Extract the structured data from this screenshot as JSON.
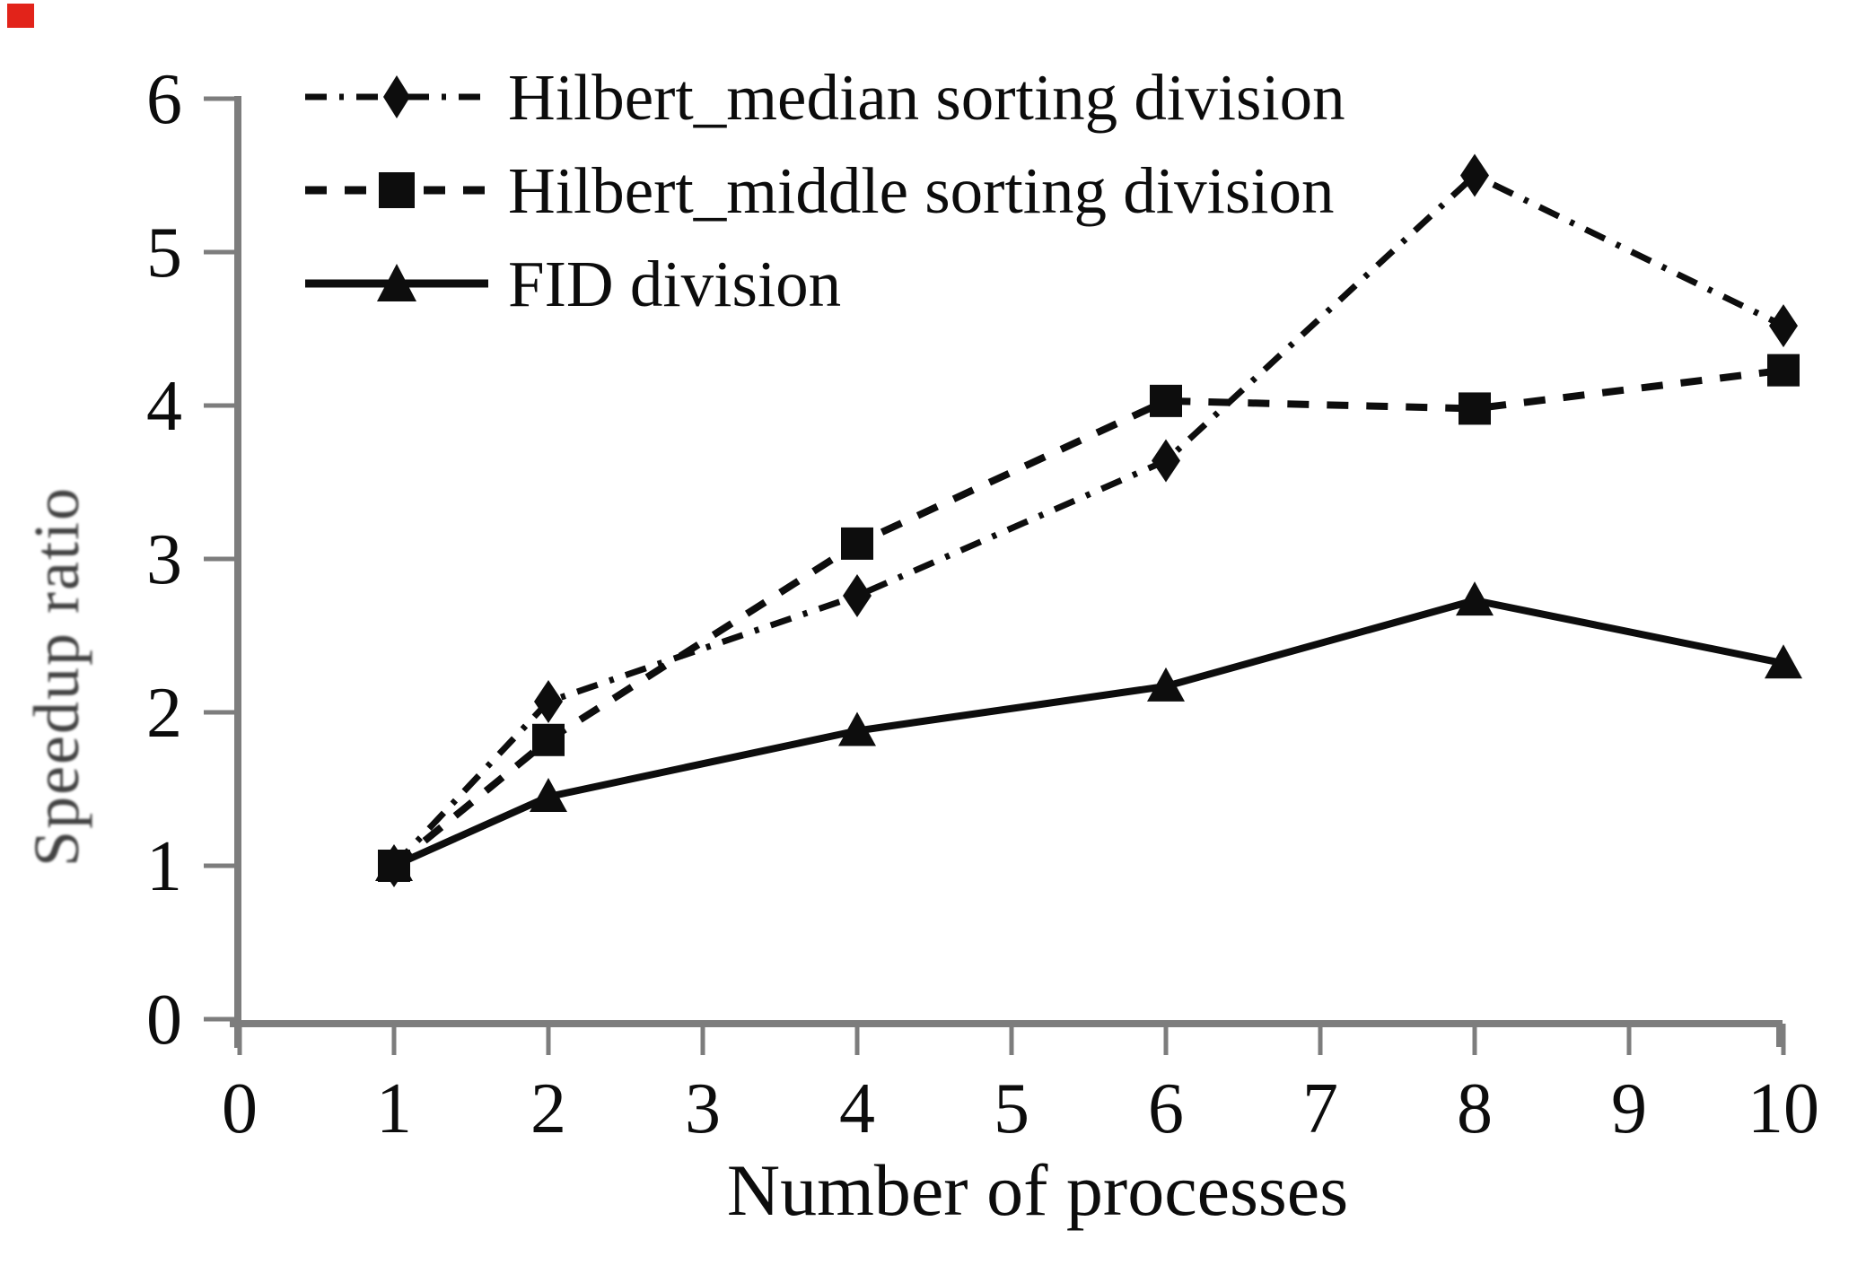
{
  "figure": {
    "type_note": "black-and-white line chart, serif fonts, legend top-left"
  },
  "chart_data": {
    "type": "line",
    "title": "",
    "xlabel": "Number of processes",
    "ylabel": "Speedup ratio",
    "xlim": [
      0,
      10
    ],
    "ylim": [
      0,
      6
    ],
    "x_ticks": [
      0,
      1,
      2,
      3,
      4,
      5,
      6,
      7,
      8,
      9,
      10
    ],
    "y_ticks": [
      0,
      1,
      2,
      3,
      4,
      5,
      6
    ],
    "grid": false,
    "legend_position": "top-left",
    "x": [
      1,
      2,
      4,
      6,
      8,
      10
    ],
    "series": [
      {
        "name": "Hilbert_median sorting division",
        "marker": "diamond",
        "line_style": "dash-dot",
        "color": "#0d0d0d",
        "values": [
          1.0,
          2.07,
          2.76,
          3.64,
          5.5,
          4.52
        ]
      },
      {
        "name": "Hilbert_middle sorting division",
        "marker": "square",
        "line_style": "dashed",
        "color": "#0d0d0d",
        "values": [
          1.0,
          1.82,
          3.1,
          4.03,
          3.98,
          4.23
        ]
      },
      {
        "name": "FID division",
        "marker": "triangle",
        "line_style": "solid",
        "color": "#0d0d0d",
        "values": [
          1.0,
          1.45,
          1.88,
          2.17,
          2.73,
          2.32
        ]
      }
    ]
  },
  "colors": {
    "axis": "#7d7d7d",
    "text": "#0c0c0c",
    "ylabel_text": "#424242",
    "series": "#0d0d0d",
    "corner_mark": "#e2231a"
  }
}
